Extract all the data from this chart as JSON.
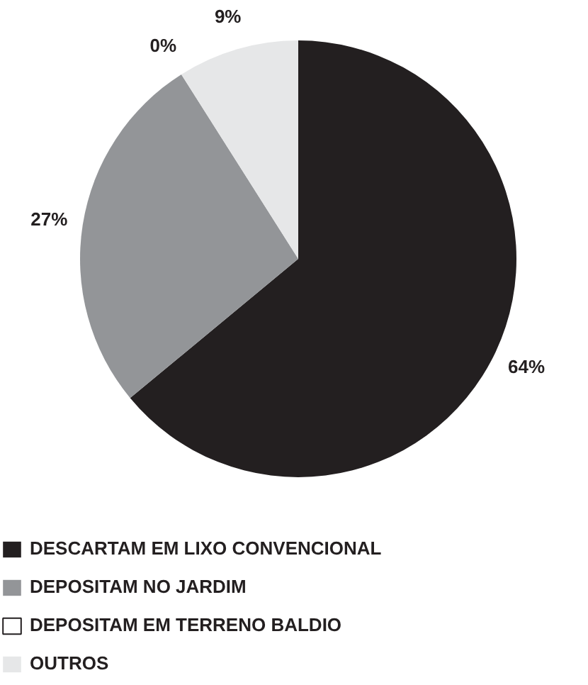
{
  "chart_data": {
    "type": "pie",
    "categories": [
      "DESCARTAM EM LIXO CONVENCIONAL",
      "DEPOSITAM NO JARDIM",
      "DEPOSITAM EM TERRENO BALDIO",
      "OUTROS"
    ],
    "values": [
      64,
      27,
      0,
      9
    ],
    "colors": [
      "#231f20",
      "#939598",
      "#ffffff",
      "#e6e7e8"
    ],
    "value_labels": [
      "64%",
      "27%",
      "0%",
      "9%"
    ],
    "legend": "bottom left"
  }
}
